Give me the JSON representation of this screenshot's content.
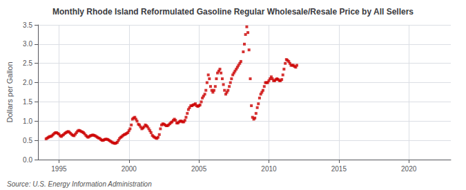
{
  "chart_data": {
    "type": "scatter",
    "title": "Monthly Rhode Island Reformulated Gasoline Regular Wholesale/Resale Price by All Sellers",
    "ylabel": "Dollars per Gallon",
    "annotations": [
      "Source: U.S. Energy Information Administration"
    ],
    "color": "#CC0000",
    "marker": "square",
    "grid": true,
    "xlim": [
      1993.5,
      2023.0
    ],
    "ylim": [
      0.0,
      3.5
    ],
    "xticks": [
      1995,
      2000,
      2005,
      2010,
      2015,
      2020
    ],
    "yticks": [
      {
        "value": 0.0,
        "label": "0.0"
      },
      0.5,
      {
        "value": 1.0,
        "label": "1.0"
      },
      1.5,
      {
        "value": 2.0,
        "label": "2.0"
      },
      2.5,
      {
        "value": 3.0,
        "label": "3.0"
      },
      3.5
    ],
    "x": [
      1994.08,
      1994.17,
      1994.25,
      1994.33,
      1994.42,
      1994.5,
      1994.58,
      1994.67,
      1994.75,
      1994.83,
      1994.92,
      1995.0,
      1995.08,
      1995.17,
      1995.25,
      1995.33,
      1995.42,
      1995.5,
      1995.58,
      1995.67,
      1995.75,
      1995.83,
      1995.92,
      1996.0,
      1996.08,
      1996.17,
      1996.25,
      1996.33,
      1996.42,
      1996.5,
      1996.58,
      1996.67,
      1996.75,
      1996.83,
      1996.92,
      1997.0,
      1997.08,
      1997.17,
      1997.25,
      1997.33,
      1997.42,
      1997.5,
      1997.58,
      1997.67,
      1997.75,
      1997.83,
      1997.92,
      1998.0,
      1998.08,
      1998.17,
      1998.25,
      1998.33,
      1998.42,
      1998.5,
      1998.58,
      1998.67,
      1998.75,
      1998.83,
      1998.92,
      1999.0,
      1999.08,
      1999.17,
      1999.25,
      1999.33,
      1999.42,
      1999.5,
      1999.58,
      1999.67,
      1999.75,
      1999.83,
      1999.92,
      2000.0,
      2000.08,
      2000.17,
      2000.25,
      2000.33,
      2000.42,
      2000.5,
      2000.58,
      2000.67,
      2000.75,
      2000.83,
      2000.92,
      2001.0,
      2001.08,
      2001.17,
      2001.25,
      2001.33,
      2001.42,
      2001.5,
      2001.58,
      2001.67,
      2001.75,
      2001.83,
      2001.92,
      2002.0,
      2002.08,
      2002.17,
      2002.25,
      2002.33,
      2002.42,
      2002.5,
      2002.58,
      2002.67,
      2002.75,
      2002.83,
      2002.92,
      2003.0,
      2003.08,
      2003.17,
      2003.25,
      2003.33,
      2003.42,
      2003.5,
      2003.58,
      2003.67,
      2003.75,
      2003.83,
      2003.92,
      2004.0,
      2004.08,
      2004.17,
      2004.25,
      2004.33,
      2004.42,
      2004.5,
      2004.58,
      2004.67,
      2004.75,
      2004.83,
      2004.92,
      2005.0,
      2005.08,
      2005.17,
      2005.25,
      2005.33,
      2005.42,
      2005.5,
      2005.58,
      2005.67,
      2005.75,
      2005.83,
      2005.92,
      2006.0,
      2006.08,
      2006.17,
      2006.25,
      2006.33,
      2006.42,
      2006.5,
      2006.58,
      2006.67,
      2006.75,
      2006.83,
      2006.92,
      2007.0,
      2007.08,
      2007.17,
      2007.25,
      2007.33,
      2007.42,
      2007.5,
      2007.58,
      2007.67,
      2007.75,
      2007.83,
      2007.92,
      2008.0,
      2008.17,
      2008.25,
      2008.33,
      2008.42,
      2008.5,
      2008.58,
      2008.67,
      2008.75,
      2008.83,
      2008.92,
      2009.0,
      2009.08,
      2009.17,
      2009.25,
      2009.33,
      2009.42,
      2009.5,
      2009.58,
      2009.67,
      2009.75,
      2009.83,
      2009.92,
      2010.0,
      2010.08,
      2010.17,
      2010.25,
      2010.33,
      2010.42,
      2010.5,
      2010.58,
      2010.67,
      2010.75,
      2010.83,
      2010.92,
      2011.0,
      2011.08,
      2011.17,
      2011.25,
      2011.33,
      2011.42,
      2011.5,
      2011.58,
      2011.67,
      2011.75,
      2011.83,
      2011.92,
      2012.0
    ],
    "values": [
      0.54,
      0.56,
      0.58,
      0.6,
      0.6,
      0.62,
      0.65,
      0.68,
      0.7,
      0.7,
      0.68,
      0.66,
      0.62,
      0.6,
      0.63,
      0.65,
      0.68,
      0.7,
      0.72,
      0.73,
      0.71,
      0.68,
      0.65,
      0.63,
      0.62,
      0.66,
      0.7,
      0.74,
      0.76,
      0.75,
      0.73,
      0.72,
      0.7,
      0.67,
      0.63,
      0.6,
      0.58,
      0.6,
      0.62,
      0.63,
      0.64,
      0.63,
      0.62,
      0.6,
      0.58,
      0.56,
      0.55,
      0.52,
      0.5,
      0.5,
      0.52,
      0.53,
      0.53,
      0.52,
      0.5,
      0.48,
      0.46,
      0.44,
      0.43,
      0.42,
      0.43,
      0.45,
      0.5,
      0.55,
      0.58,
      0.6,
      0.63,
      0.65,
      0.66,
      0.68,
      0.7,
      0.75,
      0.8,
      0.9,
      1.05,
      1.08,
      1.1,
      1.05,
      1.0,
      0.92,
      0.9,
      0.85,
      0.8,
      0.82,
      0.85,
      0.9,
      0.88,
      0.85,
      0.8,
      0.75,
      0.7,
      0.63,
      0.6,
      0.58,
      0.56,
      0.55,
      0.58,
      0.65,
      0.8,
      0.9,
      0.93,
      0.92,
      0.9,
      0.88,
      0.88,
      0.9,
      0.93,
      0.96,
      0.98,
      1.02,
      1.05,
      1.02,
      0.95,
      0.95,
      0.98,
      1.0,
      1.0,
      0.98,
      0.98,
      1.02,
      1.1,
      1.2,
      1.3,
      1.35,
      1.4,
      1.4,
      1.42,
      1.43,
      1.45,
      1.4,
      1.38,
      1.4,
      1.42,
      1.5,
      1.6,
      1.65,
      1.7,
      1.8,
      2.0,
      2.2,
      2.1,
      1.9,
      1.8,
      1.75,
      1.8,
      1.9,
      2.1,
      2.25,
      2.3,
      2.35,
      2.25,
      2.1,
      1.95,
      1.8,
      1.7,
      1.75,
      1.8,
      1.9,
      2.0,
      2.1,
      2.2,
      2.25,
      2.3,
      2.35,
      2.4,
      2.45,
      2.5,
      2.55,
      2.8,
      3.0,
      3.25,
      3.45,
      3.3,
      2.85,
      2.1,
      1.4,
      1.1,
      1.05,
      1.08,
      1.2,
      1.35,
      1.45,
      1.6,
      1.7,
      1.75,
      1.8,
      1.9,
      2.0,
      2.0,
      2.0,
      2.05,
      2.1,
      2.15,
      2.1,
      2.05,
      2.05,
      2.08,
      2.1,
      2.08,
      2.05,
      2.05,
      2.08,
      2.2,
      2.35,
      2.5,
      2.6,
      2.58,
      2.55,
      2.5,
      2.45,
      2.45,
      2.45,
      2.42,
      2.4,
      2.45
    ]
  }
}
